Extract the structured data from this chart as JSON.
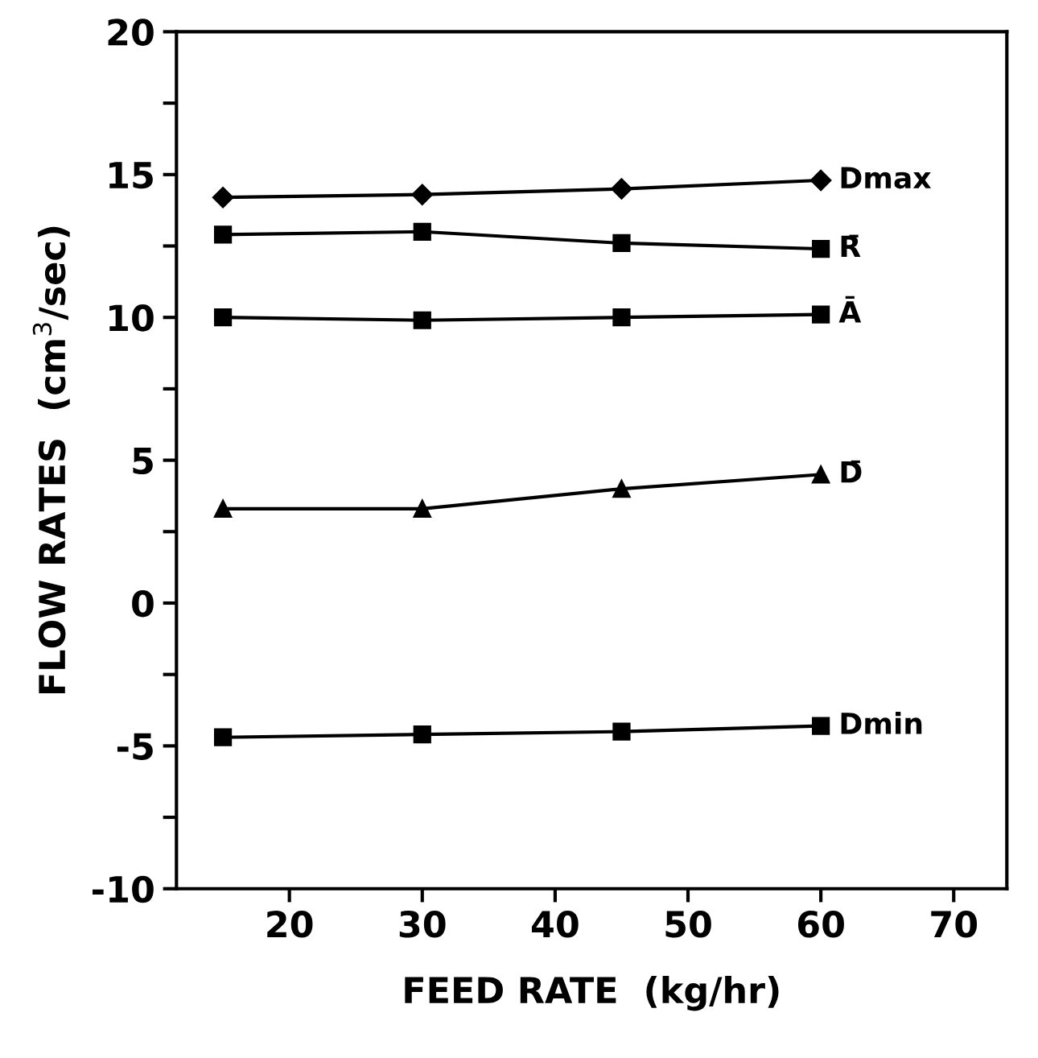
{
  "chart_data": {
    "type": "line",
    "xlabel": "FEED RATE  (kg/hr)",
    "ylabel": "FLOW RATES  (cm$^{3}$/sec)",
    "x": [
      15,
      30,
      45,
      60
    ],
    "xlim": [
      11.5,
      74
    ],
    "xticks": [
      20,
      30,
      40,
      50,
      60,
      70
    ],
    "ylim": [
      -10,
      20
    ],
    "yticks": [
      -10,
      {
        "value": -7.5,
        "label": null
      },
      -5,
      {
        "value": -2.5,
        "label": null
      },
      0,
      {
        "value": 2.5,
        "label": null
      },
      5,
      {
        "value": 7.5,
        "label": null
      },
      10,
      {
        "value": 12.5,
        "label": null
      },
      15,
      {
        "value": 17.5,
        "label": null
      },
      20
    ],
    "grid": false,
    "legend": false,
    "line_style": "solid",
    "series": [
      {
        "name": "Dmax",
        "color": "#000000",
        "marker": "diamond",
        "values": [
          14.2,
          14.3,
          14.5,
          14.8
        ]
      },
      {
        "name": "R̄",
        "color": "#000000",
        "marker": "square",
        "values": [
          12.9,
          13.0,
          12.6,
          12.4
        ]
      },
      {
        "name": "Ā",
        "color": "#000000",
        "marker": "square",
        "values": [
          10.0,
          9.9,
          10.0,
          10.1
        ]
      },
      {
        "name": "D̄",
        "color": "#000000",
        "marker": "triangle",
        "values": [
          3.3,
          3.3,
          4.0,
          4.5
        ]
      },
      {
        "name": "Dmin",
        "color": "#000000",
        "marker": "square",
        "values": [
          -4.7,
          -4.6,
          -4.5,
          -4.3
        ]
      }
    ]
  }
}
